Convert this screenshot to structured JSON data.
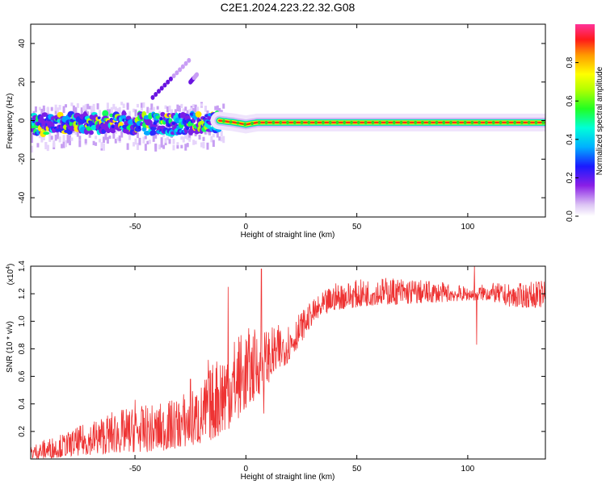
{
  "title": "C2E1.2024.223.22.32.G08",
  "chart_data": [
    {
      "type": "heatmap",
      "title": "",
      "xlabel": "Height of straight line (km)",
      "ylabel": "Frequency (Hz)",
      "xlim": [
        -97,
        135
      ],
      "ylim": [
        -50,
        50
      ],
      "xticks": [
        "-50",
        "0",
        "50",
        "100"
      ],
      "yticks": [
        "40",
        "20",
        "0",
        "-20",
        "-40"
      ],
      "colorbar": {
        "label": "Normalized spectral amplitude",
        "range": [
          0,
          1
        ],
        "ticks": [
          "0.0",
          "0.2",
          "0.4",
          "0.6",
          "0.8"
        ],
        "colormap": "rainbow (white-violet-blue-cyan-green-yellow-red-magenta)"
      },
      "features": {
        "main_band": {
          "x_start": -97,
          "x_end": 135,
          "center_hz": [
            [
              -97,
              -2
            ],
            [
              -60,
              -1
            ],
            [
              -30,
              -2
            ],
            [
              -20,
              -1
            ],
            [
              -12,
              0
            ],
            [
              -5,
              -1
            ],
            [
              0,
              -2
            ],
            [
              5,
              -1
            ],
            [
              50,
              -1
            ],
            [
              100,
              -1
            ],
            [
              135,
              -1
            ]
          ]
        },
        "spurious": [
          {
            "x": [
              -42,
              -25
            ],
            "y": [
              12,
              32
            ]
          },
          {
            "x": [
              -25,
              -22
            ],
            "y": [
              20,
              24
            ]
          }
        ]
      }
    },
    {
      "type": "line",
      "title": "",
      "xlabel": "Height of straight line (km)",
      "ylabel": "SNR (10 * v/v)",
      "multiplier": "(x10",
      "multiplier_exp": "4",
      "xlim": [
        -97,
        135
      ],
      "ylim": [
        0,
        1.4
      ],
      "xticks": [
        "-50",
        "0",
        "50",
        "100"
      ],
      "yticks": [
        "1.4",
        "1.2",
        "1.0",
        "0.8",
        "0.6",
        "0.4",
        "0.2"
      ],
      "series_color": "#ee3333",
      "envelope": {
        "x": [
          -97,
          -90,
          -80,
          -70,
          -60,
          -50,
          -40,
          -30,
          -20,
          -10,
          0,
          10,
          20,
          30,
          40,
          50,
          60,
          70,
          80,
          90,
          100,
          110,
          120,
          135
        ],
        "low": [
          0.0,
          0.0,
          0.02,
          0.03,
          0.04,
          0.05,
          0.05,
          0.08,
          0.1,
          0.18,
          0.35,
          0.55,
          0.72,
          0.98,
          1.08,
          1.1,
          1.12,
          1.12,
          1.13,
          1.14,
          1.15,
          1.15,
          1.1,
          1.1
        ],
        "high": [
          0.1,
          0.15,
          0.2,
          0.28,
          0.35,
          0.38,
          0.4,
          0.45,
          0.55,
          0.85,
          0.95,
          0.95,
          1.0,
          1.15,
          1.28,
          1.3,
          1.32,
          1.32,
          1.3,
          1.28,
          1.25,
          1.28,
          1.27,
          1.3
        ]
      },
      "spikes": [
        {
          "x": -50,
          "y": 0.43
        },
        {
          "x": -28,
          "y": 0.47
        },
        {
          "x": -25,
          "y": 0.58
        },
        {
          "x": -17,
          "y": 0.72
        },
        {
          "x": -13,
          "y": 0.6
        },
        {
          "x": -8,
          "y": 1.25
        },
        {
          "x": 7,
          "y": 1.38
        },
        {
          "x": 8,
          "y": 0.33
        },
        {
          "x": 103,
          "y": 1.4
        },
        {
          "x": 104,
          "y": 0.83
        }
      ]
    }
  ]
}
